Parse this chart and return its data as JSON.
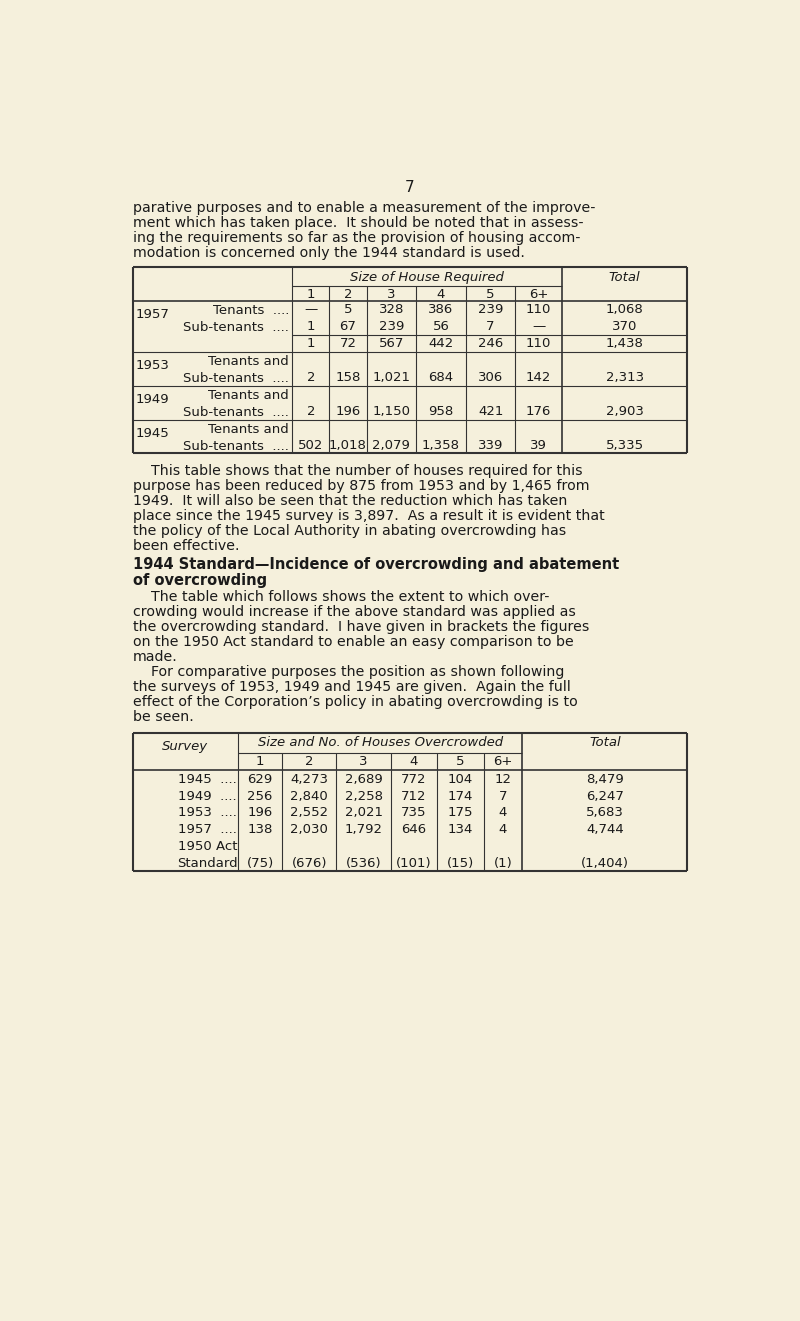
{
  "bg_color": "#f5f0dc",
  "text_color": "#1a1a1a",
  "page_number": "7",
  "intro_text": [
    "parative purposes and to enable a measurement of the improve-",
    "ment which has taken place.  It should be noted that in assess-",
    "ing the requirements so far as the provision of housing accom-",
    "modation is concerned only the 1944 standard is used."
  ],
  "table1_header_main": "Size of House Required",
  "table1_header_total": "Total",
  "table1_header_cols": [
    "1",
    "2",
    "3",
    "4",
    "5",
    "6+"
  ],
  "table1_sections": [
    {
      "year": "1957",
      "rows": [
        {
          "label": "Tenants",
          "dots": "....",
          "vals": [
            "—",
            "5",
            "328",
            "386",
            "239",
            "110"
          ],
          "total": "1,068"
        },
        {
          "label": "Sub-tenants",
          "dots": "....",
          "vals": [
            "1",
            "67",
            "239",
            "56",
            "7",
            "—"
          ],
          "total": "370"
        }
      ],
      "subtotal_vals": [
        "1",
        "72",
        "567",
        "442",
        "246",
        "110"
      ],
      "subtotal_total": "1,438",
      "has_subtotal": true
    },
    {
      "year": "1953",
      "rows": [
        {
          "label": "Tenants and",
          "label2": "Sub-tenants",
          "dots": "....",
          "vals": [
            "2",
            "158",
            "1,021",
            "684",
            "306",
            "142"
          ],
          "total": "2,313"
        }
      ],
      "has_subtotal": false
    },
    {
      "year": "1949",
      "rows": [
        {
          "label": "Tenants and",
          "label2": "Sub-tenants",
          "dots": "....",
          "vals": [
            "2",
            "196",
            "1,150",
            "958",
            "421",
            "176"
          ],
          "total": "2,903"
        }
      ],
      "has_subtotal": false
    },
    {
      "year": "1945",
      "rows": [
        {
          "label": "Tenants and",
          "label2": "Sub-tenants",
          "dots": "....",
          "vals": [
            "502",
            "1,018",
            "2,079",
            "1,358",
            "339",
            "39"
          ],
          "total": "5,335"
        }
      ],
      "has_subtotal": false
    }
  ],
  "mid_text1": [
    "    This table shows that the number of houses required for this",
    "purpose has been reduced by 875 from 1953 and by 1,465 from",
    "1949.  It will also be seen that the reduction which has taken",
    "place since the 1945 survey is 3,897.  As a result it is evident that",
    "the policy of the Local Authority in abating overcrowding has",
    "been effective."
  ],
  "heading_bold_line1": "1944 Standard—Incidence of overcrowding and abatement",
  "heading_bold_line2": "of overcrowding",
  "mid_text2": [
    "    The table which follows shows the extent to which over-",
    "crowding would increase if the above standard was applied as",
    "the overcrowding standard.  I have given in brackets the figures",
    "on the 1950 Act standard to enable an easy comparison to be",
    "made.",
    "    For comparative purposes the position as shown following",
    "the surveys of 1953, 1949 and 1945 are given.  Again the full",
    "effect of the Corporation’s policy in abating overcrowding is to",
    "be seen."
  ],
  "table2_header_survey": "Survey",
  "table2_header_main": "Size and No. of Houses Overcrowded",
  "table2_header_total": "Total",
  "table2_header_cols": [
    "1",
    "2",
    "3",
    "4",
    "5",
    "6+"
  ],
  "table2_rows": [
    {
      "label": "1945",
      "dots": "....",
      "vals": [
        "629",
        "4,273",
        "2,689",
        "772",
        "104",
        "12"
      ],
      "total": "8,479"
    },
    {
      "label": "1949",
      "dots": "....",
      "vals": [
        "256",
        "2,840",
        "2,258",
        "712",
        "174",
        "7"
      ],
      "total": "6,247"
    },
    {
      "label": "1953",
      "dots": "....",
      "vals": [
        "196",
        "2,552",
        "2,021",
        "735",
        "175",
        "4"
      ],
      "total": "5,683"
    },
    {
      "label": "1957",
      "dots": "....",
      "vals": [
        "138",
        "2,030",
        "1,792",
        "646",
        "134",
        "4"
      ],
      "total": "4,744"
    },
    {
      "label": "1950 Act",
      "label2": "Standard",
      "dots": "",
      "vals": [
        "(75)",
        "(676)",
        "(536)",
        "(101)",
        "(15)",
        "(1)"
      ],
      "total": "(1,404)"
    }
  ]
}
